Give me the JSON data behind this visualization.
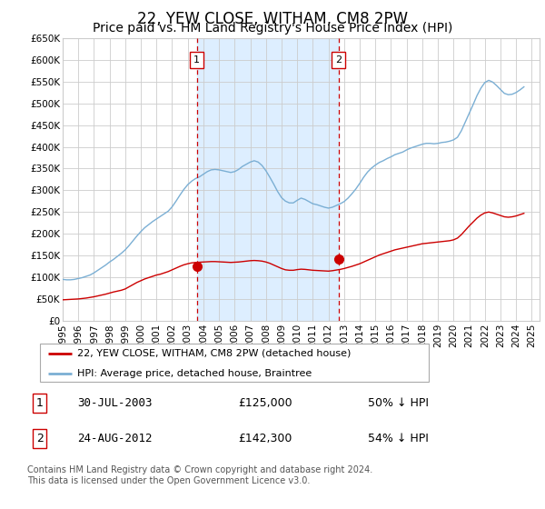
{
  "title": "22, YEW CLOSE, WITHAM, CM8 2PW",
  "subtitle": "Price paid vs. HM Land Registry's House Price Index (HPI)",
  "title_fontsize": 12,
  "subtitle_fontsize": 10,
  "ylim": [
    0,
    650000
  ],
  "yticks": [
    0,
    50000,
    100000,
    150000,
    200000,
    250000,
    300000,
    350000,
    400000,
    450000,
    500000,
    550000,
    600000,
    650000
  ],
  "ytick_labels": [
    "£0",
    "£50K",
    "£100K",
    "£150K",
    "£200K",
    "£250K",
    "£300K",
    "£350K",
    "£400K",
    "£450K",
    "£500K",
    "£550K",
    "£600K",
    "£650K"
  ],
  "xlim_start": 1995.0,
  "xlim_end": 2025.5,
  "bg_color": "#ffffff",
  "plot_bg_color": "#ffffff",
  "grid_color": "#cccccc",
  "hpi_color": "#7bafd4",
  "price_color": "#cc0000",
  "vline_color": "#cc0000",
  "shade_color": "#ddeeff",
  "marker_color": "#cc0000",
  "transaction1_x": 2003.57,
  "transaction2_x": 2012.65,
  "transaction1_price": 125000,
  "transaction2_price": 142300,
  "transaction1_label": "30-JUL-2003",
  "transaction2_label": "24-AUG-2012",
  "transaction1_pct": "50% ↓ HPI",
  "transaction2_pct": "54% ↓ HPI",
  "legend_label_price": "22, YEW CLOSE, WITHAM, CM8 2PW (detached house)",
  "legend_label_hpi": "HPI: Average price, detached house, Braintree",
  "footer": "Contains HM Land Registry data © Crown copyright and database right 2024.\nThis data is licensed under the Open Government Licence v3.0.",
  "hpi_data_x": [
    1995.0,
    1995.25,
    1995.5,
    1995.75,
    1996.0,
    1996.25,
    1996.5,
    1996.75,
    1997.0,
    1997.25,
    1997.5,
    1997.75,
    1998.0,
    1998.25,
    1998.5,
    1998.75,
    1999.0,
    1999.25,
    1999.5,
    1999.75,
    2000.0,
    2000.25,
    2000.5,
    2000.75,
    2001.0,
    2001.25,
    2001.5,
    2001.75,
    2002.0,
    2002.25,
    2002.5,
    2002.75,
    2003.0,
    2003.25,
    2003.5,
    2003.75,
    2004.0,
    2004.25,
    2004.5,
    2004.75,
    2005.0,
    2005.25,
    2005.5,
    2005.75,
    2006.0,
    2006.25,
    2006.5,
    2006.75,
    2007.0,
    2007.25,
    2007.5,
    2007.75,
    2008.0,
    2008.25,
    2008.5,
    2008.75,
    2009.0,
    2009.25,
    2009.5,
    2009.75,
    2010.0,
    2010.25,
    2010.5,
    2010.75,
    2011.0,
    2011.25,
    2011.5,
    2011.75,
    2012.0,
    2012.25,
    2012.5,
    2012.75,
    2013.0,
    2013.25,
    2013.5,
    2013.75,
    2014.0,
    2014.25,
    2014.5,
    2014.75,
    2015.0,
    2015.25,
    2015.5,
    2015.75,
    2016.0,
    2016.25,
    2016.5,
    2016.75,
    2017.0,
    2017.25,
    2017.5,
    2017.75,
    2018.0,
    2018.25,
    2018.5,
    2018.75,
    2019.0,
    2019.25,
    2019.5,
    2019.75,
    2020.0,
    2020.25,
    2020.5,
    2020.75,
    2021.0,
    2021.25,
    2021.5,
    2021.75,
    2022.0,
    2022.25,
    2022.5,
    2022.75,
    2023.0,
    2023.25,
    2023.5,
    2023.75,
    2024.0,
    2024.25,
    2024.5
  ],
  "hpi_data_y": [
    95000,
    94000,
    94000,
    95000,
    97000,
    99000,
    102000,
    105000,
    110000,
    116000,
    122000,
    128000,
    135000,
    141000,
    148000,
    155000,
    163000,
    173000,
    184000,
    195000,
    205000,
    214000,
    221000,
    228000,
    234000,
    240000,
    246000,
    252000,
    262000,
    275000,
    289000,
    302000,
    313000,
    321000,
    327000,
    331000,
    337000,
    343000,
    347000,
    348000,
    347000,
    345000,
    343000,
    341000,
    343000,
    348000,
    355000,
    360000,
    365000,
    368000,
    365000,
    357000,
    345000,
    330000,
    314000,
    297000,
    283000,
    275000,
    271000,
    271000,
    277000,
    282000,
    279000,
    274000,
    269000,
    267000,
    264000,
    261000,
    259000,
    261000,
    265000,
    269000,
    274000,
    282000,
    292000,
    303000,
    316000,
    330000,
    342000,
    351000,
    358000,
    364000,
    368000,
    373000,
    377000,
    382000,
    385000,
    388000,
    393000,
    397000,
    400000,
    403000,
    406000,
    408000,
    408000,
    407000,
    408000,
    410000,
    411000,
    413000,
    416000,
    422000,
    437000,
    457000,
    477000,
    497000,
    518000,
    535000,
    548000,
    553000,
    549000,
    541000,
    532000,
    523000,
    520000,
    521000,
    525000,
    531000,
    538000
  ],
  "price_data_x": [
    1995.0,
    1995.25,
    1995.5,
    1995.75,
    1996.0,
    1996.25,
    1996.5,
    1996.75,
    1997.0,
    1997.25,
    1997.5,
    1997.75,
    1998.0,
    1998.25,
    1998.5,
    1998.75,
    1999.0,
    1999.25,
    1999.5,
    1999.75,
    2000.0,
    2000.25,
    2000.5,
    2000.75,
    2001.0,
    2001.25,
    2001.5,
    2001.75,
    2002.0,
    2002.25,
    2002.5,
    2002.75,
    2003.0,
    2003.25,
    2003.5,
    2003.75,
    2004.0,
    2004.25,
    2004.5,
    2004.75,
    2005.0,
    2005.25,
    2005.5,
    2005.75,
    2006.0,
    2006.25,
    2006.5,
    2006.75,
    2007.0,
    2007.25,
    2007.5,
    2007.75,
    2008.0,
    2008.25,
    2008.5,
    2008.75,
    2009.0,
    2009.25,
    2009.5,
    2009.75,
    2010.0,
    2010.25,
    2010.5,
    2010.75,
    2011.0,
    2011.25,
    2011.5,
    2011.75,
    2012.0,
    2012.25,
    2012.5,
    2012.75,
    2013.0,
    2013.25,
    2013.5,
    2013.75,
    2014.0,
    2014.25,
    2014.5,
    2014.75,
    2015.0,
    2015.25,
    2015.5,
    2015.75,
    2016.0,
    2016.25,
    2016.5,
    2016.75,
    2017.0,
    2017.25,
    2017.5,
    2017.75,
    2018.0,
    2018.25,
    2018.5,
    2018.75,
    2019.0,
    2019.25,
    2019.5,
    2019.75,
    2020.0,
    2020.25,
    2020.5,
    2020.75,
    2021.0,
    2021.25,
    2021.5,
    2021.75,
    2022.0,
    2022.25,
    2022.5,
    2022.75,
    2023.0,
    2023.25,
    2023.5,
    2023.75,
    2024.0,
    2024.25,
    2024.5
  ],
  "price_data_y": [
    48000,
    48500,
    49000,
    49500,
    50000,
    51000,
    52000,
    53500,
    55000,
    57000,
    59000,
    61000,
    63500,
    66000,
    68000,
    70000,
    73000,
    78000,
    83000,
    88000,
    92000,
    96000,
    99000,
    102000,
    105000,
    107000,
    110000,
    113000,
    117000,
    121000,
    125000,
    128500,
    131000,
    133000,
    134000,
    134500,
    135000,
    135500,
    136000,
    136000,
    135500,
    135000,
    134500,
    134000,
    134500,
    135000,
    136000,
    137000,
    138000,
    138500,
    138000,
    137000,
    135000,
    132000,
    128000,
    124000,
    120000,
    117000,
    116000,
    116000,
    117500,
    118500,
    118000,
    117000,
    116000,
    115500,
    115000,
    114500,
    114000,
    115000,
    116500,
    118000,
    120000,
    122500,
    125000,
    128000,
    131000,
    135000,
    139000,
    143000,
    147000,
    151000,
    154000,
    157000,
    160000,
    163000,
    165000,
    167000,
    169000,
    171000,
    173000,
    175000,
    177000,
    178000,
    179000,
    180000,
    181000,
    182000,
    183000,
    184000,
    186000,
    190000,
    198000,
    208000,
    218000,
    227000,
    236000,
    243000,
    248000,
    250000,
    248000,
    245000,
    242000,
    239000,
    238000,
    239000,
    241000,
    244000,
    247000
  ]
}
